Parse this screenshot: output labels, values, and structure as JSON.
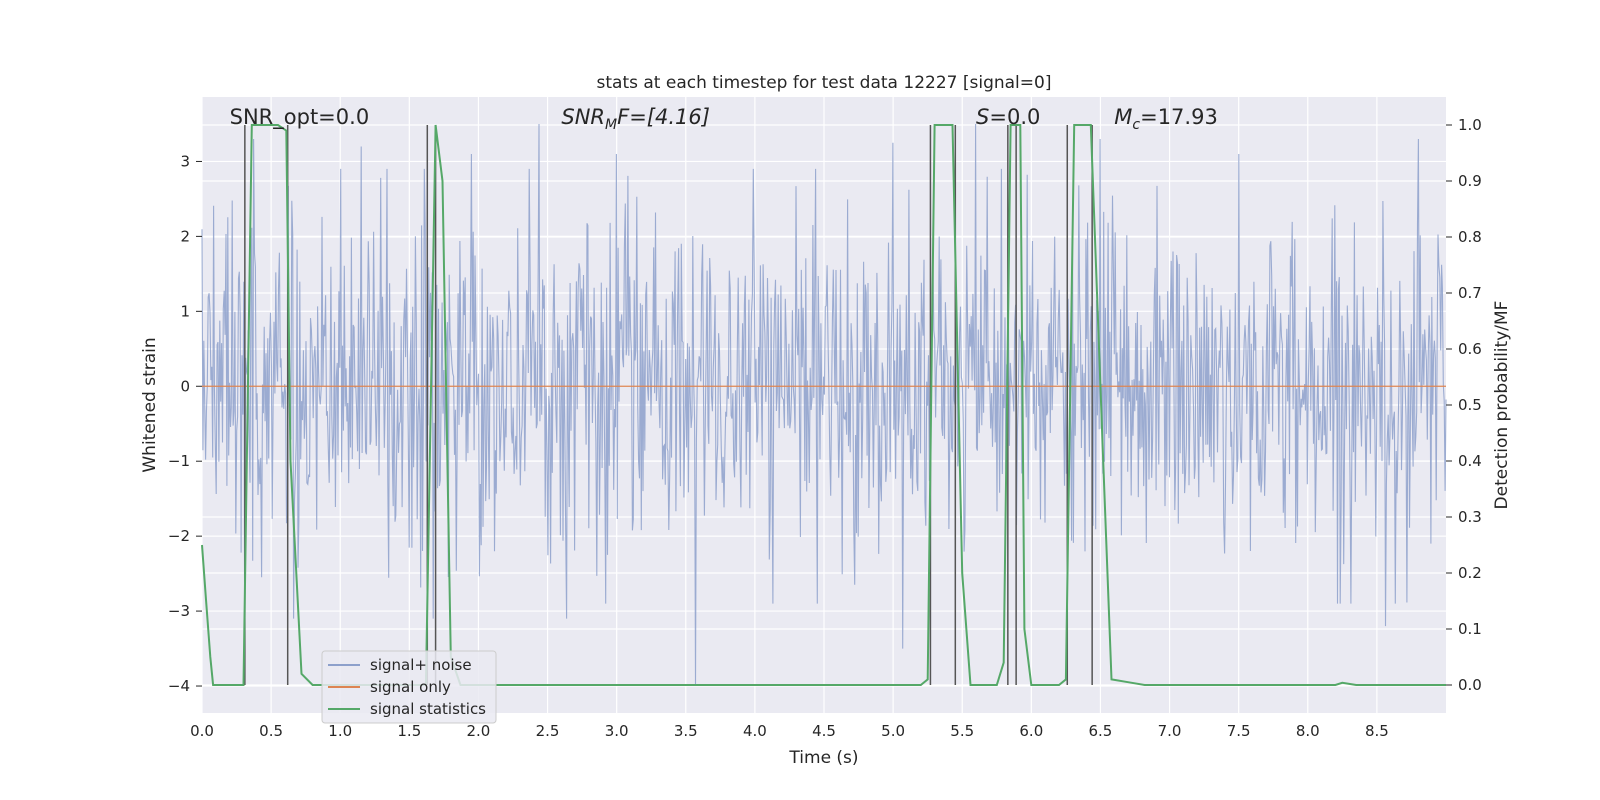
{
  "chart_data": {
    "type": "line",
    "title": "stats at each timestep for test data 12227 [signal=0]",
    "xlabel": "Time (s)",
    "ylabel": "Whitened strain",
    "y2label": "Detection probability/MF",
    "xlim": [
      0.0,
      9.0
    ],
    "ylim": [
      -4.36,
      3.86
    ],
    "y2lim": [
      -0.05,
      1.05
    ],
    "xticks": [
      "0.0",
      "0.5",
      "1.0",
      "1.5",
      "2.0",
      "2.5",
      "3.0",
      "3.5",
      "4.0",
      "4.5",
      "5.0",
      "5.5",
      "6.0",
      "6.5",
      "7.0",
      "7.5",
      "8.0",
      "8.5"
    ],
    "yticks": [
      "3",
      "2",
      "1",
      "0",
      "−1",
      "−2",
      "−3",
      "−4"
    ],
    "y2ticks": [
      "1.0",
      "0.9",
      "0.8",
      "0.7",
      "0.6",
      "0.5",
      "0.4",
      "0.3",
      "0.2",
      "0.1",
      "0.0"
    ],
    "grid": true,
    "legend_position": "lower-left",
    "annotations": [
      {
        "text": "SNR_opt=0.0",
        "x": 0.2
      },
      {
        "text": "SNR",
        "sub": "M",
        "tail": "F=[4.16]",
        "x": 2.6
      },
      {
        "text": "S",
        "tail": "=0.0",
        "x": 5.6
      },
      {
        "text": "M",
        "sub": "c",
        "tail": "=17.93",
        "x": 6.6
      }
    ],
    "series": [
      {
        "name": "signal+ noise",
        "color": "#8da0cb",
        "kind": "noise",
        "t_start": 0.0,
        "t_end": 9.0,
        "n": 1400,
        "sigma": 1.0,
        "spikes": [
          {
            "x": 0.31,
            "y": -3.6
          },
          {
            "x": 0.37,
            "y": 3.3
          },
          {
            "x": 0.66,
            "y": -3.1
          },
          {
            "x": 1.15,
            "y": 3.2
          },
          {
            "x": 1.67,
            "y": -3.1
          },
          {
            "x": 2.44,
            "y": 3.5
          },
          {
            "x": 2.64,
            "y": -3.1
          },
          {
            "x": 3.0,
            "y": 3.1
          },
          {
            "x": 3.57,
            "y": -4.0
          },
          {
            "x": 5.0,
            "y": 3.25
          },
          {
            "x": 5.07,
            "y": -3.5
          },
          {
            "x": 5.6,
            "y": 3.5
          },
          {
            "x": 6.5,
            "y": 3.3
          },
          {
            "x": 8.56,
            "y": -3.2
          },
          {
            "x": 8.8,
            "y": 3.3
          },
          {
            "x": 1.95,
            "y": 3.1
          },
          {
            "x": 7.5,
            "y": 3.1
          }
        ]
      },
      {
        "name": "signal only",
        "color": "#dd8452",
        "kind": "flat",
        "value": 0.0
      },
      {
        "name": "signal statistics",
        "color": "#55a868",
        "kind": "probability",
        "points": [
          [
            0.0,
            0.25
          ],
          [
            0.03,
            0.15
          ],
          [
            0.06,
            0.05
          ],
          [
            0.08,
            0.0
          ],
          [
            0.3,
            0.0
          ],
          [
            0.36,
            1.0
          ],
          [
            0.55,
            1.0
          ],
          [
            0.61,
            0.99
          ],
          [
            0.64,
            0.4
          ],
          [
            0.72,
            0.02
          ],
          [
            0.8,
            0.0
          ],
          [
            1.62,
            0.0
          ],
          [
            1.69,
            1.0
          ],
          [
            1.74,
            0.9
          ],
          [
            1.8,
            0.05
          ],
          [
            1.87,
            0.0
          ],
          [
            5.2,
            0.0
          ],
          [
            5.25,
            0.01
          ],
          [
            5.3,
            1.0
          ],
          [
            5.43,
            1.0
          ],
          [
            5.5,
            0.2
          ],
          [
            5.56,
            0.0
          ],
          [
            5.75,
            0.0
          ],
          [
            5.8,
            0.04
          ],
          [
            5.85,
            1.0
          ],
          [
            5.92,
            1.0
          ],
          [
            5.95,
            0.1
          ],
          [
            6.0,
            0.0
          ],
          [
            6.2,
            0.0
          ],
          [
            6.25,
            0.01
          ],
          [
            6.31,
            1.0
          ],
          [
            6.43,
            1.0
          ],
          [
            6.52,
            0.4
          ],
          [
            6.58,
            0.01
          ],
          [
            6.7,
            0.005
          ],
          [
            6.82,
            0.0
          ],
          [
            8.2,
            0.0
          ],
          [
            8.25,
            0.004
          ],
          [
            8.35,
            0.0
          ],
          [
            9.0,
            0.0
          ]
        ]
      }
    ],
    "vlines": [
      0.31,
      0.62,
      1.63,
      1.69,
      5.27,
      5.45,
      5.83,
      5.89,
      6.26,
      6.44
    ]
  }
}
